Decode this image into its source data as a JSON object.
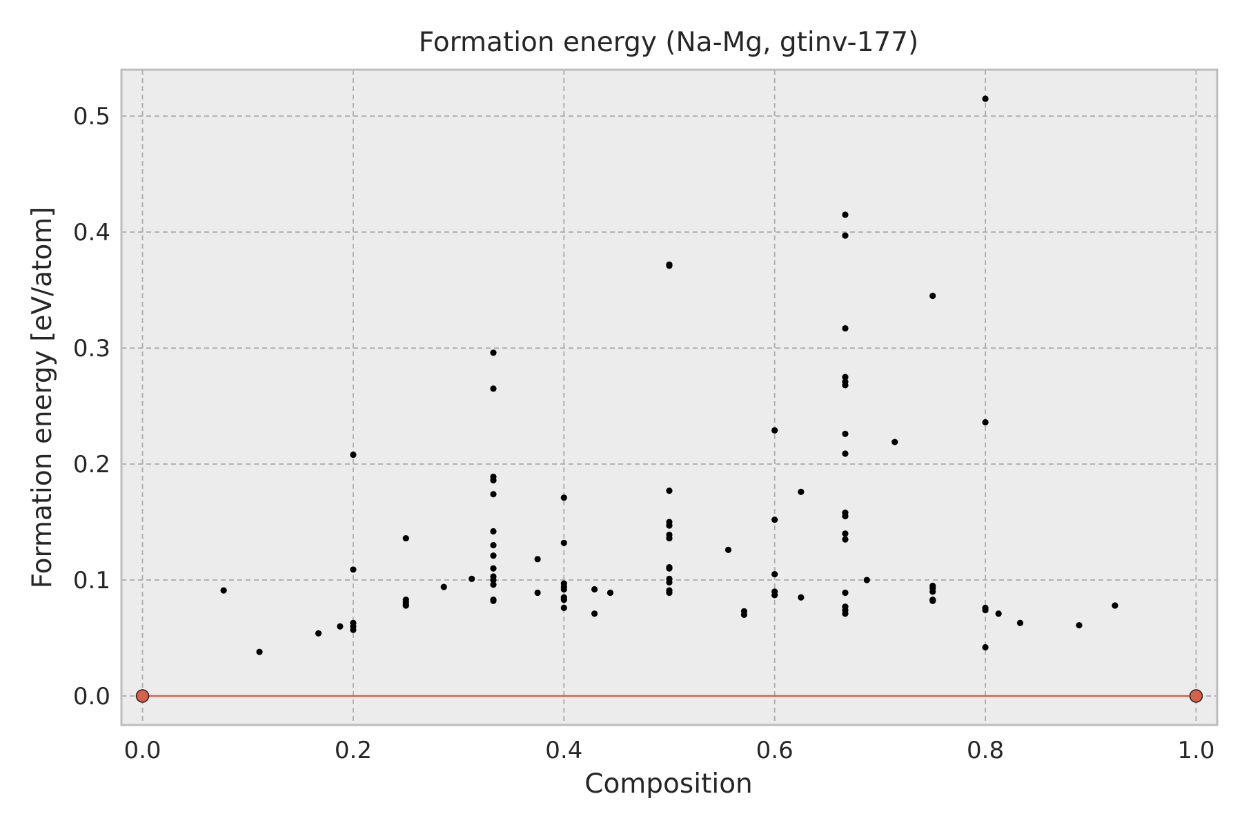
{
  "chart_data": {
    "type": "scatter",
    "title": "Formation energy (Na-Mg, gtinv-177)",
    "xlabel": "Composition",
    "ylabel": "Formation energy [eV/atom]",
    "xlim": [
      -0.02,
      1.02
    ],
    "ylim": [
      -0.025,
      0.54
    ],
    "xticks": [
      "0.0",
      "0.2",
      "0.4",
      "0.6",
      "0.8",
      "1.0"
    ],
    "xtick_values": [
      0.0,
      0.2,
      0.4,
      0.6,
      0.8,
      1.0
    ],
    "yticks": [
      "0.0",
      "0.1",
      "0.2",
      "0.3",
      "0.4",
      "0.5"
    ],
    "ytick_values": [
      0.0,
      0.1,
      0.2,
      0.3,
      0.4,
      0.5
    ],
    "grid": true,
    "colors": {
      "plot_background": "#ececec",
      "grid": "#b0b0b0",
      "spine": "#bdbdbd",
      "points": "#000000",
      "hull_line": "#d9604b",
      "hull_points": "#d9604b"
    },
    "series": [
      {
        "kind": "structures",
        "points": [
          [
            0.077,
            0.091
          ],
          [
            0.111,
            0.038
          ],
          [
            0.167,
            0.054
          ],
          [
            0.1875,
            0.06
          ],
          [
            0.2,
            0.208
          ],
          [
            0.2,
            0.109
          ],
          [
            0.2,
            0.063
          ],
          [
            0.2,
            0.06
          ],
          [
            0.2,
            0.057
          ],
          [
            0.25,
            0.136
          ],
          [
            0.25,
            0.083
          ],
          [
            0.25,
            0.081
          ],
          [
            0.25,
            0.079
          ],
          [
            0.25,
            0.078
          ],
          [
            0.286,
            0.094
          ],
          [
            0.3125,
            0.101
          ],
          [
            0.333,
            0.296
          ],
          [
            0.333,
            0.265
          ],
          [
            0.333,
            0.189
          ],
          [
            0.333,
            0.186
          ],
          [
            0.333,
            0.174
          ],
          [
            0.333,
            0.142
          ],
          [
            0.333,
            0.13
          ],
          [
            0.333,
            0.121
          ],
          [
            0.333,
            0.11
          ],
          [
            0.333,
            0.103
          ],
          [
            0.333,
            0.1
          ],
          [
            0.333,
            0.096
          ],
          [
            0.333,
            0.083
          ],
          [
            0.333,
            0.082
          ],
          [
            0.375,
            0.118
          ],
          [
            0.375,
            0.089
          ],
          [
            0.4,
            0.171
          ],
          [
            0.4,
            0.132
          ],
          [
            0.4,
            0.097
          ],
          [
            0.4,
            0.094
          ],
          [
            0.4,
            0.092
          ],
          [
            0.4,
            0.085
          ],
          [
            0.4,
            0.083
          ],
          [
            0.4,
            0.076
          ],
          [
            0.429,
            0.092
          ],
          [
            0.429,
            0.071
          ],
          [
            0.444,
            0.089
          ],
          [
            0.5,
            0.372
          ],
          [
            0.5,
            0.371
          ],
          [
            0.5,
            0.177
          ],
          [
            0.5,
            0.15
          ],
          [
            0.5,
            0.147
          ],
          [
            0.5,
            0.139
          ],
          [
            0.5,
            0.136
          ],
          [
            0.5,
            0.111
          ],
          [
            0.5,
            0.11
          ],
          [
            0.5,
            0.101
          ],
          [
            0.5,
            0.098
          ],
          [
            0.5,
            0.091
          ],
          [
            0.5,
            0.089
          ],
          [
            0.556,
            0.126
          ],
          [
            0.571,
            0.073
          ],
          [
            0.571,
            0.07
          ],
          [
            0.6,
            0.229
          ],
          [
            0.6,
            0.152
          ],
          [
            0.6,
            0.105
          ],
          [
            0.6,
            0.09
          ],
          [
            0.6,
            0.087
          ],
          [
            0.625,
            0.176
          ],
          [
            0.625,
            0.085
          ],
          [
            0.667,
            0.415
          ],
          [
            0.667,
            0.397
          ],
          [
            0.667,
            0.317
          ],
          [
            0.667,
            0.275
          ],
          [
            0.667,
            0.271
          ],
          [
            0.667,
            0.268
          ],
          [
            0.667,
            0.226
          ],
          [
            0.667,
            0.209
          ],
          [
            0.667,
            0.158
          ],
          [
            0.667,
            0.155
          ],
          [
            0.667,
            0.14
          ],
          [
            0.667,
            0.135
          ],
          [
            0.667,
            0.089
          ],
          [
            0.667,
            0.077
          ],
          [
            0.667,
            0.074
          ],
          [
            0.667,
            0.071
          ],
          [
            0.6875,
            0.1
          ],
          [
            0.714,
            0.219
          ],
          [
            0.75,
            0.345
          ],
          [
            0.75,
            0.095
          ],
          [
            0.75,
            0.093
          ],
          [
            0.75,
            0.09
          ],
          [
            0.75,
            0.083
          ],
          [
            0.75,
            0.082
          ],
          [
            0.8,
            0.515
          ],
          [
            0.8,
            0.236
          ],
          [
            0.8,
            0.076
          ],
          [
            0.8,
            0.074
          ],
          [
            0.8,
            0.042
          ],
          [
            0.8125,
            0.071
          ],
          [
            0.833,
            0.063
          ],
          [
            0.889,
            0.061
          ],
          [
            0.923,
            0.078
          ]
        ]
      },
      {
        "kind": "convex-hull",
        "points": [
          [
            0.0,
            0.0
          ],
          [
            1.0,
            0.0
          ]
        ]
      }
    ]
  }
}
